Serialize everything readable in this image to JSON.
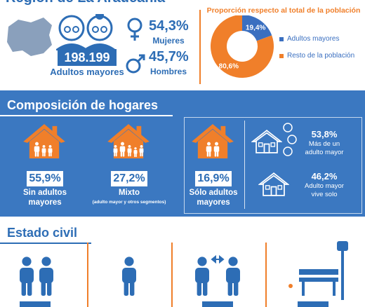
{
  "header": {
    "title": "Región de La Araucanía"
  },
  "population": {
    "total": "198.199",
    "label": "Adultos mayores"
  },
  "gender": [
    {
      "value": "54,3%",
      "label": "Mujeres"
    },
    {
      "value": "45,7%",
      "label": "Hombres"
    }
  ],
  "chart_data": {
    "type": "pie",
    "donut": true,
    "title": "Proporción respecto al total de la población",
    "categories": [
      "Adultos mayores",
      "Resto de la población"
    ],
    "values": [
      19.4,
      80.6
    ],
    "value_labels": [
      "19,4%",
      "80,6%"
    ],
    "colors": [
      "#3a6fc0",
      "#f07f2a"
    ],
    "legend": "right"
  },
  "households": {
    "title": "Composición de hogares",
    "items": [
      {
        "value": "55,9%",
        "label": "Sin adultos mayores"
      },
      {
        "value": "27,2%",
        "label": "Mixto",
        "note": "(adulto mayor y otros segmentos)"
      },
      {
        "value": "16,9%",
        "label": "Sólo adultos mayores"
      }
    ],
    "living": [
      {
        "value": "53,8%",
        "label": "Más de un adulto mayor"
      },
      {
        "value": "46,2%",
        "label": "Adulto mayor vive solo"
      }
    ]
  },
  "civil_status": {
    "title": "Estado civil"
  }
}
